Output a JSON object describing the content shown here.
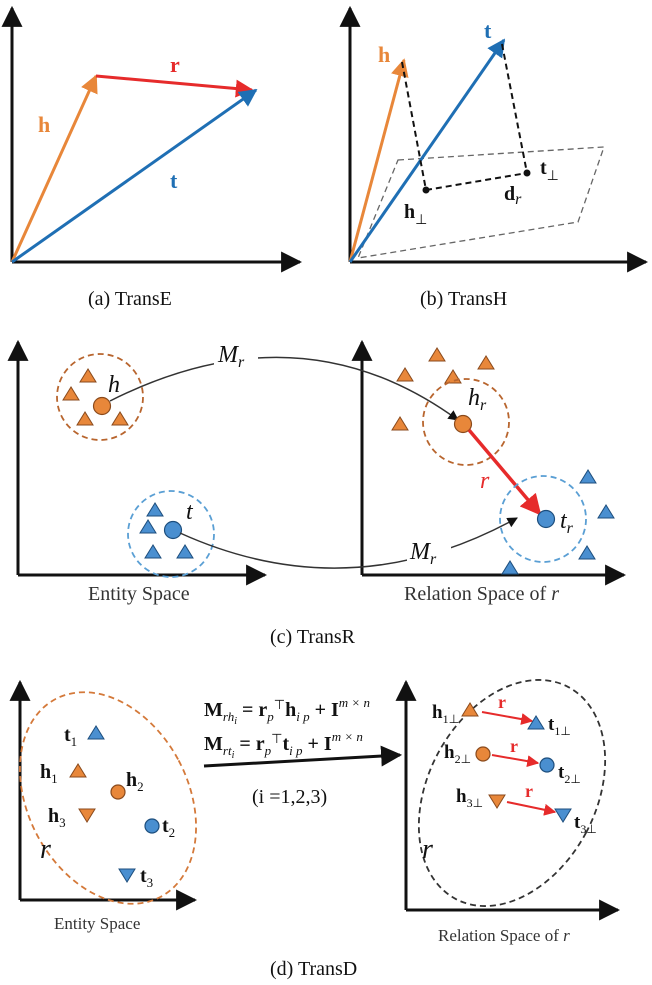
{
  "panels": {
    "transe": {
      "caption": "(a) TransE",
      "labels": {
        "h": "h",
        "r": "r",
        "t": "t"
      },
      "colors": {
        "h": "#e8873a",
        "r": "#e62b2b",
        "t": "#1f6fb4"
      }
    },
    "transh": {
      "caption": "(b) TransH",
      "labels": {
        "h": "h",
        "t": "t",
        "h_perp": "h",
        "t_perp": "t",
        "d_r": "d",
        "d_r_sub": "r",
        "perp_symbol": "⊥"
      }
    },
    "transr": {
      "caption": "(c) TransR",
      "entity_space_label": "Entity Space",
      "relation_space_label": "Relation Space of ",
      "relation_space_var": "r",
      "labels": {
        "h": "h",
        "t": "t",
        "M_r": "M",
        "M_r_sub": "r",
        "h_r": "h",
        "h_r_sub": "r",
        "t_r": "t",
        "t_r_sub": "r",
        "r": "r"
      }
    },
    "transd": {
      "caption": "(d) TransD",
      "entity_space_label": "Entity Space",
      "relation_space_label": "Relation Space of ",
      "relation_space_var": "r",
      "region_label": "r",
      "entities": [
        "t1",
        "h1",
        "h2",
        "h3",
        "t2",
        "t3"
      ],
      "projected_pairs": [
        "h1⊥ → t1⊥",
        "h2⊥ → t2⊥",
        "h3⊥ → t3⊥"
      ],
      "equation_1": {
        "lhs": "M",
        "lhs_sub": "rh",
        "lhs_subsub": "i",
        "rhs": " = r",
        "rhs_sub": "p",
        "rhs_sup": "⊤",
        "rhs2": "h",
        "rhs2_sub": "i p",
        "rhs3": " + I",
        "rhs3_sup": "m × n"
      },
      "equation_2": {
        "lhs": "M",
        "lhs_sub": "rt",
        "lhs_subsub": "i",
        "rhs": " = r",
        "rhs_sub": "p",
        "rhs_sup": "⊤",
        "rhs2": "t",
        "rhs2_sub": "i p",
        "rhs3": " + I",
        "rhs3_sup": "m × n"
      },
      "index_note": "(i =1,2,3)"
    }
  }
}
